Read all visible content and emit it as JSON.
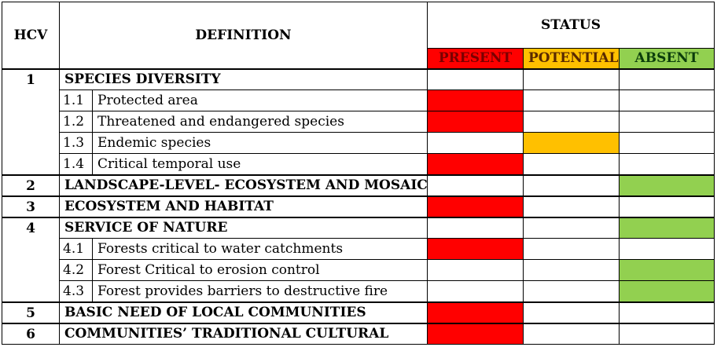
{
  "header": {
    "hcv": "HCV",
    "definition": "DEFINITION",
    "status": "STATUS",
    "present": "PRESENT",
    "potential": "POTENTIAL",
    "absent": "ABSENT"
  },
  "colors": {
    "present": "#ff0000",
    "potential": "#ffc000",
    "absent": "#92d050"
  },
  "groups": [
    {
      "hcv": "1",
      "title": "SPECIES DIVERSITY",
      "status": "",
      "subs": [
        {
          "num": "1.1",
          "label": "Protected area",
          "status": "present"
        },
        {
          "num": "1.2",
          "label": "Threatened and endangered species",
          "status": "present"
        },
        {
          "num": "1.3",
          "label": "Endemic species",
          "status": "potential"
        },
        {
          "num": "1.4",
          "label": "Critical temporal use",
          "status": "present"
        }
      ]
    },
    {
      "hcv": "2",
      "title": "LANDSCAPE-LEVEL- ECOSYSTEM AND MOSAICS",
      "status": "absent",
      "subs": []
    },
    {
      "hcv": "3",
      "title": "ECOSYSTEM AND HABITAT",
      "status": "present",
      "subs": []
    },
    {
      "hcv": "4",
      "title": "SERVICE OF NATURE",
      "status": "absent",
      "subs": [
        {
          "num": "4.1",
          "label": "Forests critical to water catchments",
          "status": "present"
        },
        {
          "num": "4.2",
          "label": "Forest Critical to erosion control",
          "status": "absent"
        },
        {
          "num": "4.3",
          "label": "Forest provides barriers to destructive fire",
          "status": "absent"
        }
      ]
    },
    {
      "hcv": "5",
      "title": "BASIC NEED OF LOCAL COMMUNITIES",
      "status": "present",
      "subs": []
    },
    {
      "hcv": "6",
      "title": "COMMUNITIES’ TRADITIONAL CULTURAL",
      "status": "present",
      "subs": []
    }
  ]
}
